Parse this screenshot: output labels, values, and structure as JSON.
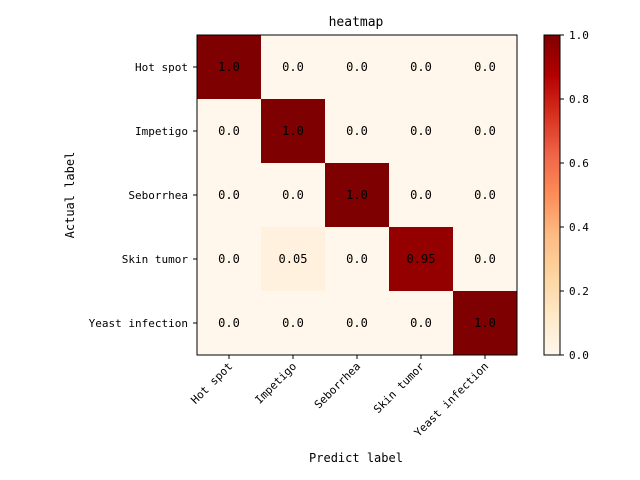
{
  "chart_data": {
    "type": "heatmap",
    "title": "heatmap",
    "xlabel": "Predict label",
    "ylabel": "Actual label",
    "x_categories": [
      "Hot spot",
      "Impetigo",
      "Seborrhea",
      "Skin tumor",
      "Yeast infection"
    ],
    "y_categories": [
      "Hot spot",
      "Impetigo",
      "Seborrhea",
      "Skin tumor",
      "Yeast infection"
    ],
    "values": [
      [
        1.0,
        0.0,
        0.0,
        0.0,
        0.0
      ],
      [
        0.0,
        1.0,
        0.0,
        0.0,
        0.0
      ],
      [
        0.0,
        0.0,
        1.0,
        0.0,
        0.0
      ],
      [
        0.0,
        0.05,
        0.0,
        0.95,
        0.0
      ],
      [
        0.0,
        0.0,
        0.0,
        0.0,
        1.0
      ]
    ],
    "cell_labels": [
      [
        "1.0",
        "0.0",
        "0.0",
        "0.0",
        "0.0"
      ],
      [
        "0.0",
        "1.0",
        "0.0",
        "0.0",
        "0.0"
      ],
      [
        "0.0",
        "0.0",
        "1.0",
        "0.0",
        "0.0"
      ],
      [
        "0.0",
        "0.05",
        "0.0",
        "0.95",
        "0.0"
      ],
      [
        "0.0",
        "0.0",
        "0.0",
        "0.0",
        "1.0"
      ]
    ],
    "colormap": "OrRd",
    "colorbar": {
      "range": [
        0.0,
        1.0
      ],
      "ticks": [
        "0.0",
        "0.2",
        "0.4",
        "0.6",
        "0.8",
        "1.0"
      ]
    }
  }
}
